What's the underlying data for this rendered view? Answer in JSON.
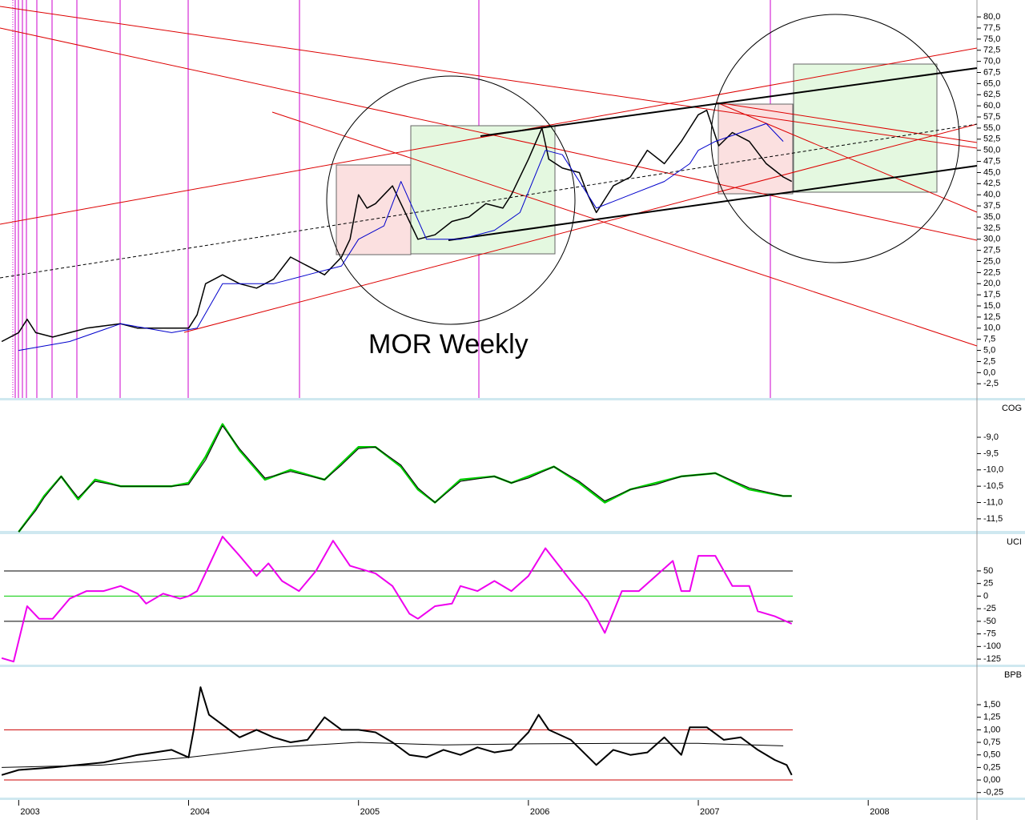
{
  "chart_data": [
    {
      "type": "line",
      "annotation": "MOR Weekly",
      "xlim": [
        2002.89,
        2008.64
      ],
      "ylim": [
        -5.7,
        83.8
      ],
      "yticks": [
        {
          "value": 80,
          "label": "80,0"
        },
        {
          "value": 77.5,
          "label": "77,5"
        },
        {
          "value": 75,
          "label": "75,0"
        },
        {
          "value": 72.5,
          "label": "72,5"
        },
        {
          "value": 70,
          "label": "70,0"
        },
        {
          "value": 67.5,
          "label": "67,5"
        },
        {
          "value": 65,
          "label": "65,0"
        },
        {
          "value": 62.5,
          "label": "62,5"
        },
        {
          "value": 60,
          "label": "60,0"
        },
        {
          "value": 57.5,
          "label": "57,5"
        },
        {
          "value": 55,
          "label": "55,0"
        },
        {
          "value": 52.5,
          "label": "52,5"
        },
        {
          "value": 50,
          "label": "50,0"
        },
        {
          "value": 47.5,
          "label": "47,5"
        },
        {
          "value": 45,
          "label": "45,0"
        },
        {
          "value": 42.5,
          "label": "42,5"
        },
        {
          "value": 40,
          "label": "40,0"
        },
        {
          "value": 37.5,
          "label": "37,5"
        },
        {
          "value": 35,
          "label": "35,0"
        },
        {
          "value": 32.5,
          "label": "32,5"
        },
        {
          "value": 30,
          "label": "30,0"
        },
        {
          "value": 27.5,
          "label": "27,5"
        },
        {
          "value": 25,
          "label": "25,0"
        },
        {
          "value": 22.5,
          "label": "22,5"
        },
        {
          "value": 20,
          "label": "20,0"
        },
        {
          "value": 17.5,
          "label": "17,5"
        },
        {
          "value": 15,
          "label": "15,0"
        },
        {
          "value": 12.5,
          "label": "12,5"
        },
        {
          "value": 10,
          "label": "10,0"
        },
        {
          "value": 7.5,
          "label": "7,5"
        },
        {
          "value": 5,
          "label": "5,0"
        },
        {
          "value": 2.5,
          "label": "2,5"
        },
        {
          "value": 0,
          "label": "0,0"
        },
        {
          "value": -2.5,
          "label": "-2,5"
        }
      ],
      "series": [
        {
          "color": "#000000",
          "width": 1.5,
          "x": [
            2002.9,
            2003.0,
            2003.05,
            2003.1,
            2003.2,
            2003.3,
            2003.4,
            2003.5,
            2003.6,
            2003.7,
            2003.8,
            2003.9,
            2004.0,
            2004.05,
            2004.1,
            2004.2,
            2004.3,
            2004.4,
            2004.5,
            2004.6,
            2004.7,
            2004.8,
            2004.9,
            2004.95,
            2005.0,
            2005.05,
            2005.1,
            2005.15,
            2005.2,
            2005.25,
            2005.3,
            2005.35,
            2005.45,
            2005.55,
            2005.65,
            2005.75,
            2005.85,
            2005.9,
            2006.0,
            2006.08,
            2006.12,
            2006.2,
            2006.3,
            2006.35,
            2006.4,
            2006.5,
            2006.6,
            2006.7,
            2006.8,
            2006.9,
            2007.0,
            2007.05,
            2007.12,
            2007.2,
            2007.3,
            2007.4,
            2007.5,
            2007.55
          ],
          "values": [
            7,
            9,
            12,
            9,
            8,
            9,
            10,
            10.5,
            11,
            10,
            10,
            10,
            10,
            13,
            20,
            22,
            20,
            19,
            21,
            26,
            24,
            22,
            26,
            30,
            40,
            37,
            38,
            40,
            42,
            38,
            34,
            30,
            31,
            34,
            35,
            38,
            37,
            40,
            48,
            55,
            48,
            46,
            45,
            40,
            36,
            42,
            44,
            50,
            47,
            52,
            58,
            59,
            51,
            54,
            52,
            47,
            44,
            43
          ]
        },
        {
          "color": "#0000cc",
          "width": 1,
          "x": [
            2003.0,
            2003.3,
            2003.6,
            2003.9,
            2004.05,
            2004.2,
            2004.5,
            2004.7,
            2004.9,
            2005.0,
            2005.15,
            2005.25,
            2005.4,
            2005.6,
            2005.8,
            2005.95,
            2006.1,
            2006.2,
            2006.4,
            2006.6,
            2006.8,
            2006.95,
            2007.0,
            2007.1,
            2007.4,
            2007.5
          ],
          "values": [
            5,
            7,
            11,
            9,
            10,
            20,
            20,
            22,
            24,
            30,
            33,
            43,
            30,
            30,
            32,
            36,
            50,
            49,
            37,
            40,
            43,
            47,
            50,
            52,
            56,
            52
          ]
        }
      ]
    },
    {
      "type": "line",
      "title": "COG",
      "xlim": [
        2002.89,
        2008.64
      ],
      "ylim": [
        -11.87,
        -7.87
      ],
      "yticks": [
        {
          "value": -9,
          "label": "-9,0"
        },
        {
          "value": -9.5,
          "label": "-9,5"
        },
        {
          "value": -10,
          "label": "-10,0"
        },
        {
          "value": -10.5,
          "label": "-10,5"
        },
        {
          "value": -11,
          "label": "-11,0"
        },
        {
          "value": -11.5,
          "label": "-11,5"
        }
      ],
      "series": [
        {
          "color": "#00cc00",
          "width": 2.5,
          "x": [
            2003.0,
            2003.1,
            2003.15,
            2003.25,
            2003.35,
            2003.45,
            2003.6,
            2003.7,
            2003.9,
            2004.0,
            2004.1,
            2004.2,
            2004.3,
            2004.45,
            2004.6,
            2004.8,
            2004.9,
            2005.0,
            2005.1,
            2005.25,
            2005.35,
            2005.45,
            2005.6,
            2005.8,
            2005.9,
            2006.0,
            2006.15,
            2006.3,
            2006.45,
            2006.6,
            2006.75,
            2006.9,
            2007.1,
            2007.3,
            2007.5,
            2007.55
          ],
          "values": [
            -11.9,
            -11.2,
            -10.8,
            -10.2,
            -10.9,
            -10.3,
            -10.5,
            -10.5,
            -10.5,
            -10.4,
            -9.6,
            -8.6,
            -9.4,
            -10.3,
            -10.0,
            -10.3,
            -9.8,
            -9.3,
            -9.3,
            -9.9,
            -10.6,
            -11.0,
            -10.3,
            -10.2,
            -10.4,
            -10.2,
            -9.9,
            -10.4,
            -11.0,
            -10.6,
            -10.4,
            -10.2,
            -10.1,
            -10.6,
            -10.8,
            -10.8
          ]
        },
        {
          "color": "#000000",
          "width": 1,
          "x": [
            2003.0,
            2003.1,
            2003.15,
            2003.25,
            2003.35,
            2003.45,
            2003.6,
            2003.7,
            2003.9,
            2004.0,
            2004.1,
            2004.2,
            2004.3,
            2004.45,
            2004.6,
            2004.8,
            2004.9,
            2005.0,
            2005.1,
            2005.25,
            2005.35,
            2005.45,
            2005.6,
            2005.8,
            2005.9,
            2006.0,
            2006.15,
            2006.3,
            2006.45,
            2006.6,
            2006.75,
            2006.9,
            2007.1,
            2007.3,
            2007.5,
            2007.55
          ],
          "values": [
            -11.9,
            -11.25,
            -10.85,
            -10.2,
            -10.85,
            -10.35,
            -10.5,
            -10.5,
            -10.5,
            -10.45,
            -9.7,
            -8.65,
            -9.35,
            -10.25,
            -10.05,
            -10.3,
            -9.85,
            -9.35,
            -9.3,
            -9.85,
            -10.55,
            -11.0,
            -10.35,
            -10.2,
            -10.4,
            -10.25,
            -9.9,
            -10.35,
            -10.95,
            -10.6,
            -10.45,
            -10.2,
            -10.1,
            -10.55,
            -10.8,
            -10.8
          ]
        }
      ]
    },
    {
      "type": "line",
      "title": "UCI",
      "xlim": [
        2002.89,
        2008.64
      ],
      "ylim": [
        -136,
        123
      ],
      "yticks": [
        50,
        25,
        0,
        -25,
        -50,
        -75,
        -100,
        -125
      ],
      "hlines": [
        {
          "value": 50,
          "color": "#000000"
        },
        {
          "value": 0,
          "color": "#00cc00"
        },
        {
          "value": -50,
          "color": "#000000"
        }
      ],
      "series": [
        {
          "color": "#ee00ee",
          "width": 2,
          "x": [
            2002.9,
            2002.97,
            2003.05,
            2003.12,
            2003.2,
            2003.3,
            2003.4,
            2003.5,
            2003.6,
            2003.7,
            2003.75,
            2003.85,
            2003.95,
            2004.0,
            2004.05,
            2004.2,
            2004.3,
            2004.4,
            2004.47,
            2004.55,
            2004.65,
            2004.75,
            2004.85,
            2004.95,
            2005.1,
            2005.2,
            2005.3,
            2005.35,
            2005.45,
            2005.55,
            2005.6,
            2005.7,
            2005.8,
            2005.9,
            2006.0,
            2006.1,
            2006.25,
            2006.35,
            2006.45,
            2006.55,
            2006.65,
            2006.75,
            2006.85,
            2006.9,
            2006.95,
            2007.0,
            2007.1,
            2007.2,
            2007.3,
            2007.35,
            2007.45,
            2007.55
          ],
          "values": [
            -123,
            -130,
            -20,
            -45,
            -45,
            -5,
            10,
            10,
            20,
            5,
            -15,
            5,
            -5,
            0,
            10,
            118,
            80,
            40,
            65,
            30,
            10,
            50,
            110,
            60,
            45,
            20,
            -35,
            -45,
            -20,
            -15,
            20,
            10,
            30,
            10,
            40,
            95,
            30,
            -10,
            -73,
            10,
            10,
            40,
            70,
            10,
            10,
            80,
            80,
            20,
            20,
            -30,
            -40,
            -55
          ]
        }
      ]
    },
    {
      "type": "line",
      "title": "BPB",
      "xlim": [
        2002.89,
        2008.64
      ],
      "ylim": [
        -0.35,
        2.25
      ],
      "yticks": [
        {
          "value": 1.5,
          "label": "1,50"
        },
        {
          "value": 1.25,
          "label": "1,25"
        },
        {
          "value": 1,
          "label": "1,00"
        },
        {
          "value": 0.75,
          "label": "0,75"
        },
        {
          "value": 0.5,
          "label": "0,50"
        },
        {
          "value": 0.25,
          "label": "0,25"
        },
        {
          "value": 0,
          "label": "0,00"
        },
        {
          "value": -0.25,
          "label": "-0,25"
        }
      ],
      "hlines": [
        {
          "value": 1,
          "color": "#cc0000"
        },
        {
          "value": 0,
          "color": "#cc0000"
        }
      ],
      "xticks": [
        2003,
        2004,
        2005,
        2006,
        2007,
        2008
      ],
      "series": [
        {
          "color": "#000000",
          "width": 2,
          "x": [
            2002.9,
            2003.0,
            2003.2,
            2003.5,
            2003.7,
            2003.8,
            2003.9,
            2004.0,
            2004.03,
            2004.07,
            2004.12,
            2004.2,
            2004.3,
            2004.4,
            2004.5,
            2004.6,
            2004.7,
            2004.8,
            2004.9,
            2005.0,
            2005.1,
            2005.2,
            2005.3,
            2005.4,
            2005.5,
            2005.6,
            2005.7,
            2005.8,
            2005.9,
            2006.0,
            2006.06,
            2006.12,
            2006.25,
            2006.4,
            2006.5,
            2006.6,
            2006.7,
            2006.8,
            2006.9,
            2006.95,
            2007.05,
            2007.15,
            2007.25,
            2007.35,
            2007.45,
            2007.52,
            2007.55
          ],
          "values": [
            0.1,
            0.2,
            0.25,
            0.35,
            0.5,
            0.55,
            0.6,
            0.45,
            1.0,
            1.85,
            1.3,
            1.1,
            0.85,
            1.0,
            0.85,
            0.75,
            0.8,
            1.25,
            1.0,
            1.0,
            0.95,
            0.75,
            0.5,
            0.45,
            0.6,
            0.5,
            0.65,
            0.55,
            0.6,
            0.95,
            1.3,
            1.0,
            0.8,
            0.3,
            0.6,
            0.5,
            0.55,
            0.85,
            0.5,
            1.05,
            1.05,
            0.8,
            0.85,
            0.6,
            0.4,
            0.3,
            0.1
          ]
        },
        {
          "color": "#000000",
          "width": 1,
          "x": [
            2002.9,
            2003.5,
            2004.0,
            2004.5,
            2005.0,
            2005.5,
            2006.0,
            2006.5,
            2007.0,
            2007.5
          ],
          "values": [
            0.25,
            0.3,
            0.45,
            0.65,
            0.75,
            0.7,
            0.72,
            0.73,
            0.73,
            0.68
          ]
        }
      ]
    }
  ]
}
